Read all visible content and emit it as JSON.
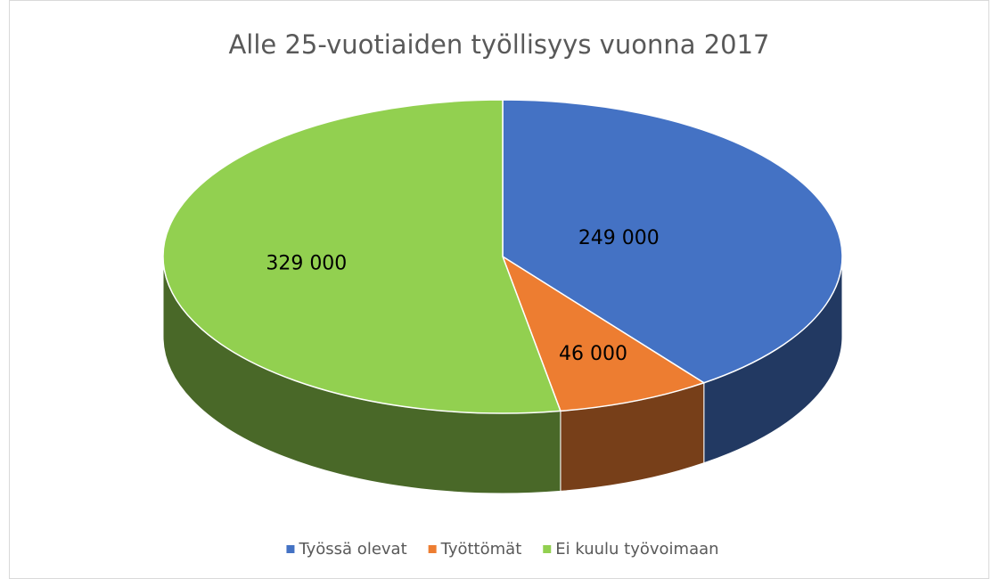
{
  "chart_data": {
    "type": "pie",
    "title": "Alle 25-vuotiaiden työllisyys vuonna 2017",
    "categories": [
      "Työssä olevat",
      "Työttömät",
      "Ei kuulu työvoimaan"
    ],
    "values": [
      249000,
      46000,
      329000
    ],
    "value_labels": [
      "249 000",
      "46 000",
      "329 000"
    ],
    "colors": [
      "#4472c4",
      "#ed7d31",
      "#92d050"
    ],
    "legend": "bottom"
  }
}
